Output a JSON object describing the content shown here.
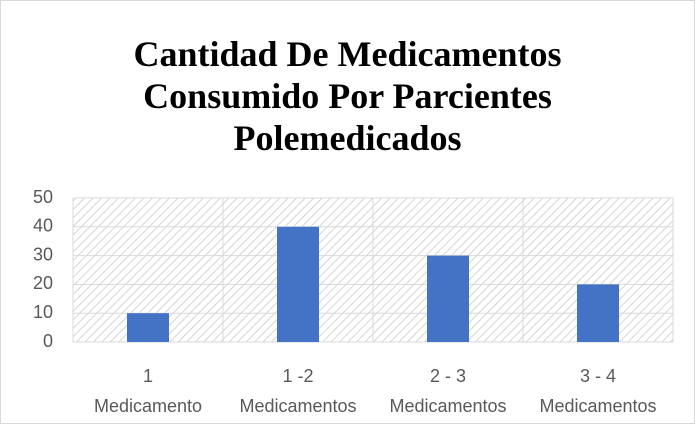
{
  "chart_data": {
    "type": "bar",
    "title": "Cantidad De Medicamentos\nConsumido Por Parcientes\nPolemedicados",
    "categories": [
      "1\nMedicamento",
      "1 -2\nMedicamentos",
      "2 - 3\nMedicamentos",
      "3 - 4\nMedicamentos"
    ],
    "values": [
      10,
      40,
      30,
      20
    ],
    "color": "#4472c4",
    "ylim": [
      0,
      50
    ],
    "yticks": [
      0,
      10,
      20,
      30,
      40,
      50
    ],
    "grid": true
  }
}
